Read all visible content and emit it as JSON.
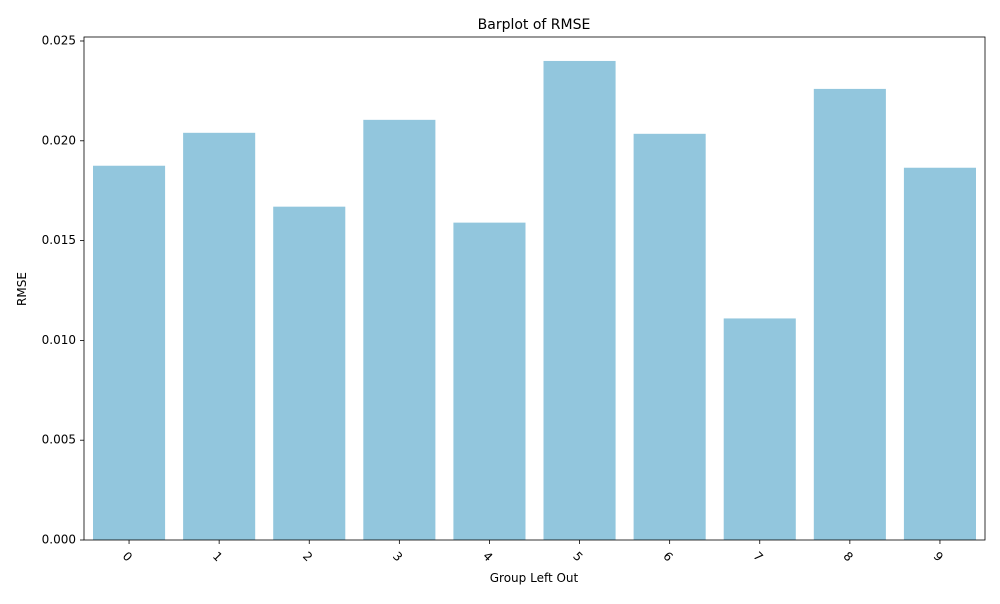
{
  "chart_data": {
    "type": "bar",
    "title": "Barplot of RMSE",
    "xlabel": "Group Left Out",
    "ylabel": "RMSE",
    "categories": [
      "0",
      "1",
      "2",
      "3",
      "4",
      "5",
      "6",
      "7",
      "8",
      "9"
    ],
    "values": [
      0.01875,
      0.0204,
      0.0167,
      0.02105,
      0.0159,
      0.024,
      0.02035,
      0.0111,
      0.0226,
      0.01865
    ],
    "ylim": [
      0,
      0.0252
    ],
    "yticks": [
      "0.000",
      "0.005",
      "0.010",
      "0.015",
      "0.020",
      "0.025"
    ],
    "ytick_values": [
      0,
      0.005,
      0.01,
      0.015,
      0.02,
      0.025
    ],
    "x_tick_rotation_deg": -45,
    "grid": false,
    "legend": "none",
    "bar_color": "#92c6dd"
  }
}
